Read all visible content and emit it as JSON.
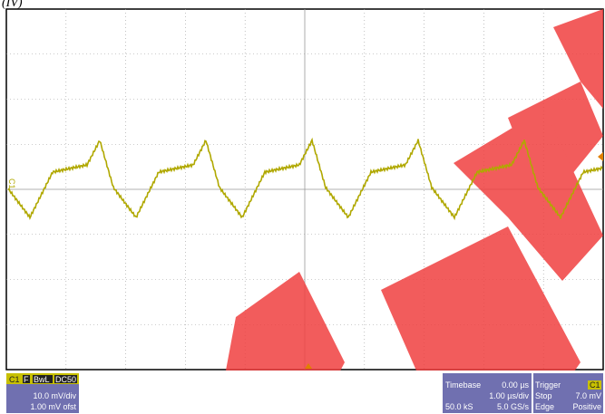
{
  "header": {
    "label": "(IV)"
  },
  "screen": {
    "channel_marker": "C1"
  },
  "status": {
    "channel": {
      "name": "C1",
      "flags": [
        "F",
        "BwL",
        "DC50"
      ],
      "scale": "10.0 mV/div",
      "offset": "1.00 mV ofst"
    },
    "timebase": {
      "title": "Timebase",
      "delay": "0.00 µs",
      "scale": "1.00 µs/div",
      "samples": "50.0 kS",
      "rate": "5.0 GS/s"
    },
    "trigger": {
      "title": "Trigger",
      "source": "C1",
      "mode": "Stop",
      "level": "7.0 mV",
      "type": "Edge",
      "slope": "Positive"
    }
  }
}
